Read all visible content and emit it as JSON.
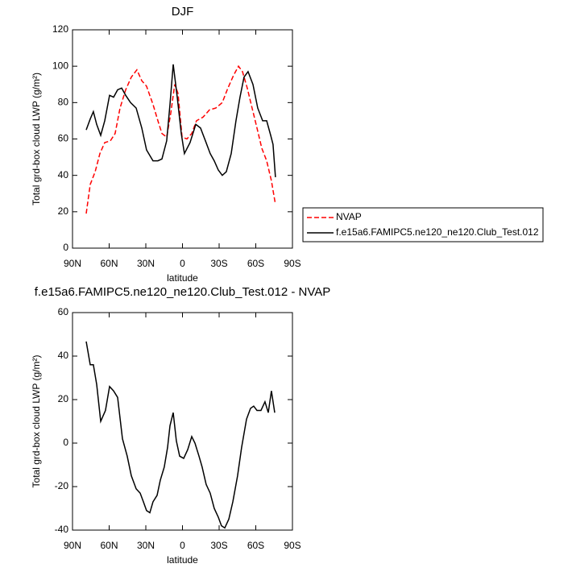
{
  "chart_data": [
    {
      "type": "line",
      "title": "DJF",
      "xlabel": "latitude",
      "ylabel": "Total grd-box cloud LWP (g/m²)",
      "xlim": [
        90,
        -90
      ],
      "xticks": [
        {
          "value": 90,
          "label": "90N"
        },
        {
          "value": 60,
          "label": "60N"
        },
        {
          "value": 30,
          "label": "30N"
        },
        0,
        {
          "value": -30,
          "label": "30S"
        },
        {
          "value": -60,
          "label": "60S"
        },
        {
          "value": -90,
          "label": "90S"
        }
      ],
      "ylim": [
        0,
        120
      ],
      "yticks": [
        0,
        20,
        40,
        60,
        80,
        100,
        120
      ],
      "legend": "right",
      "series": [
        {
          "name": "NVAP",
          "color": "#ff0000",
          "dash": "dashed",
          "x": [
            78.8,
            75.5,
            71.5,
            67.6,
            63.6,
            59.0,
            55.1,
            51.1,
            46.5,
            41.9,
            37.3,
            33.3,
            29.4,
            24.1,
            20.1,
            16.8,
            12.9,
            9.6,
            6.3,
            3.6,
            0.3,
            -3.6,
            -7.6,
            -11.5,
            -16.8,
            -22.1,
            -27.3,
            -32.6,
            -37.2,
            -41.8,
            -45.8,
            -49.1,
            -53.0,
            -57.0,
            -61.0,
            -64.9,
            -68.9,
            -72.8,
            -76.1
          ],
          "values": [
            19,
            35,
            42,
            52,
            58,
            59,
            63,
            77,
            87,
            94,
            98,
            92,
            89,
            79,
            70,
            63,
            61,
            74,
            90,
            85,
            61,
            60,
            63,
            70,
            72,
            76,
            77,
            80,
            88,
            95,
            100,
            97,
            88,
            77,
            66,
            55,
            48,
            37,
            24
          ]
        },
        {
          "name": "f.e15a6.FAMIPC5.ne120_ne120.Club_Test.012",
          "color": "#000000",
          "dash": "solid",
          "x": [
            78.8,
            75.5,
            72.9,
            70.2,
            66.9,
            63.6,
            59.7,
            56.4,
            53.1,
            49.8,
            46.5,
            42.5,
            37.9,
            33.3,
            29.4,
            24.1,
            20.1,
            16.8,
            12.9,
            10.2,
            7.6,
            4.3,
            1.0,
            -1.6,
            -6.2,
            -10.9,
            -14.8,
            -18.8,
            -22.7,
            -26.0,
            -29.3,
            -32.6,
            -35.9,
            -39.9,
            -43.8,
            -47.1,
            -50.4,
            -53.7,
            -57.7,
            -61.6,
            -65.6,
            -68.9,
            -72.2,
            -74.1,
            -76.1
          ],
          "values": [
            65,
            71,
            75,
            68,
            62,
            70,
            84,
            83,
            87,
            88,
            84,
            80,
            77,
            66,
            54,
            48,
            48,
            49,
            59,
            79,
            101,
            83,
            63,
            52,
            58,
            68,
            66,
            59,
            52,
            48,
            43,
            40,
            42,
            52,
            70,
            83,
            94,
            97,
            90,
            77,
            70,
            70,
            62,
            57,
            39
          ]
        }
      ]
    },
    {
      "type": "line",
      "title": "f.e15a6.FAMIPC5.ne120_ne120.Club_Test.012 - NVAP",
      "xlabel": "latitude",
      "ylabel": "Total grd-box cloud LWP (g/m²)",
      "xlim": [
        90,
        -90
      ],
      "xticks": [
        {
          "value": 90,
          "label": "90N"
        },
        {
          "value": 60,
          "label": "60N"
        },
        {
          "value": 30,
          "label": "30N"
        },
        0,
        {
          "value": -30,
          "label": "30S"
        },
        {
          "value": -60,
          "label": "60S"
        },
        {
          "value": -90,
          "label": "90S"
        }
      ],
      "ylim": [
        -40,
        60
      ],
      "yticks": [
        -40,
        -20,
        0,
        20,
        40,
        60
      ],
      "series": [
        {
          "color": "#000000",
          "dash": "solid",
          "x": [
            78.8,
            75.5,
            72.9,
            70.2,
            66.9,
            63.0,
            59.7,
            56.4,
            53.1,
            49.1,
            45.2,
            41.9,
            37.9,
            34.6,
            32.0,
            29.4,
            26.7,
            24.1,
            20.8,
            18.1,
            14.9,
            12.2,
            10.2,
            7.6,
            5.0,
            2.3,
            -1.0,
            -4.3,
            -7.6,
            -10.2,
            -13.5,
            -16.1,
            -19.4,
            -22.7,
            -26.0,
            -29.3,
            -31.9,
            -34.6,
            -37.9,
            -41.2,
            -45.1,
            -48.4,
            -52.4,
            -55.7,
            -58.3,
            -61.0,
            -64.2,
            -67.5,
            -70.2,
            -72.8,
            -75.5
          ],
          "values": [
            46.7,
            36,
            36,
            27,
            10,
            15,
            26,
            24,
            21,
            2,
            -6,
            -15,
            -21,
            -23,
            -27,
            -31,
            -32,
            -27,
            -24,
            -17,
            -11,
            -2,
            8,
            14,
            1,
            -6,
            -7,
            -3,
            3,
            0,
            -6,
            -11,
            -19,
            -23,
            -30,
            -34,
            -38,
            -39,
            -35,
            -27,
            -15,
            -2,
            11,
            16,
            17,
            15,
            15,
            19,
            14,
            24,
            14
          ]
        }
      ]
    }
  ]
}
